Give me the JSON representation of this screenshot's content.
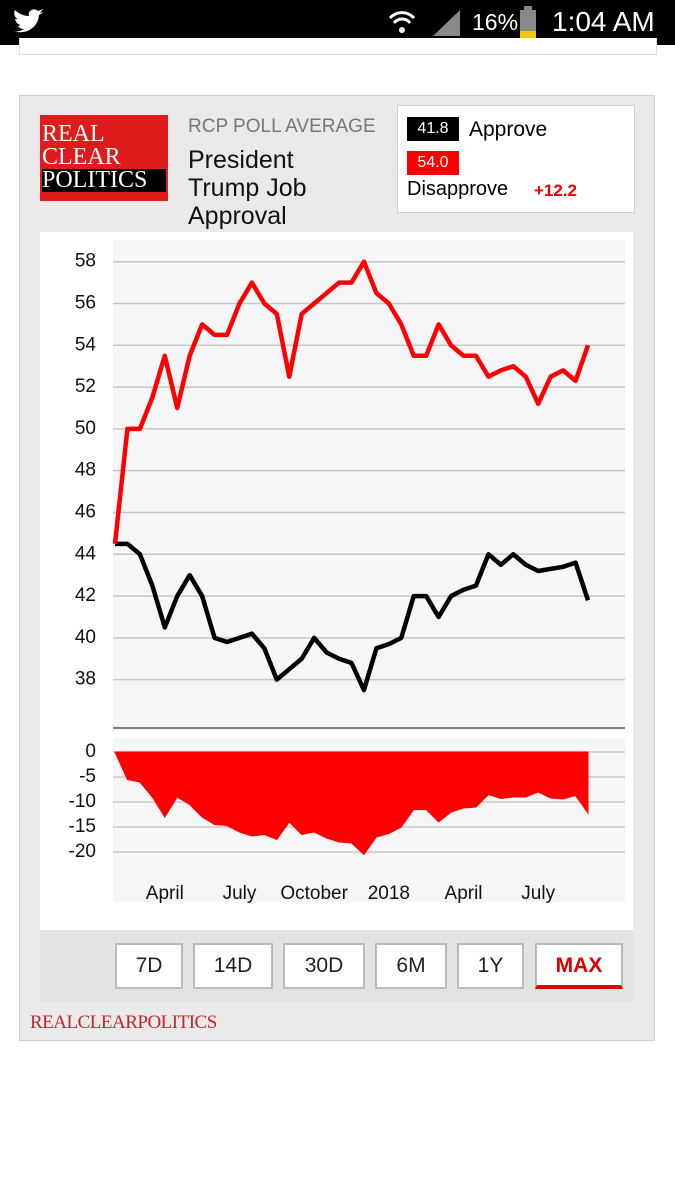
{
  "status_bar": {
    "battery": "16%",
    "time": "1:04 AM"
  },
  "widget": {
    "logo": [
      "REAL",
      "CLEAR",
      "POLITICS"
    ],
    "kicker": "RCP POLL AVERAGE",
    "title": "President Trump Job Approval",
    "summary": {
      "approve": "41.8",
      "disapprove": "54.0",
      "spread": "+12.2"
    },
    "buttons": [
      "7D",
      "14D",
      "30D",
      "6M",
      "1Y",
      "MAX"
    ],
    "selected_button": "MAX",
    "footer": "REALCLEARPOLITICS"
  },
  "chart_data": {
    "type": "line",
    "categories": [
      null,
      null,
      null,
      null,
      "April",
      null,
      null,
      null,
      null,
      null,
      "July",
      null,
      null,
      null,
      null,
      null,
      "October",
      null,
      null,
      null,
      null,
      null,
      "2018",
      null,
      null,
      null,
      null,
      null,
      "April",
      null,
      null,
      null,
      null,
      null,
      "July",
      null,
      null,
      null,
      null
    ],
    "series": [
      {
        "name": "Approve",
        "color": "#000000",
        "values": [
          44.5,
          44.5,
          44.0,
          42.5,
          40.5,
          42.0,
          43.0,
          42.0,
          40.0,
          39.8,
          40.0,
          40.2,
          39.5,
          38.0,
          38.5,
          39.0,
          40.0,
          39.3,
          39.0,
          38.8,
          37.5,
          39.5,
          39.7,
          40.0,
          42.0,
          42.0,
          41.0,
          42.0,
          42.3,
          42.5,
          44.0,
          43.5,
          44.0,
          43.5,
          43.2,
          43.3,
          43.4,
          43.6,
          41.8
        ]
      },
      {
        "name": "Disapprove",
        "color": "#ff0000",
        "values": [
          44.5,
          50.0,
          50.0,
          51.5,
          53.5,
          51.0,
          53.5,
          55.0,
          54.5,
          54.5,
          56.0,
          57.0,
          56.0,
          55.5,
          52.5,
          55.5,
          56.0,
          56.5,
          57.0,
          57.0,
          58.0,
          56.5,
          56.0,
          55.0,
          53.5,
          53.5,
          55.0,
          54.0,
          53.5,
          53.5,
          52.5,
          52.8,
          53.0,
          52.5,
          51.2,
          52.5,
          52.8,
          52.3,
          54.0
        ]
      },
      {
        "type": "area",
        "axis": "y2",
        "color": "#ff0000",
        "values": [
          0,
          -5.5,
          -6.0,
          -9.0,
          -13.0,
          -9.0,
          -10.5,
          -13.0,
          -14.5,
          -14.7,
          -16.0,
          -16.8,
          -16.5,
          -17.5,
          -14.0,
          -16.5,
          -16.0,
          -17.2,
          -18.0,
          -18.2,
          -20.5,
          -17.0,
          -16.3,
          -15.0,
          -11.5,
          -11.5,
          -14.0,
          -12.0,
          -11.2,
          -11.0,
          -8.5,
          -9.3,
          -9.0,
          -9.0,
          -8.0,
          -9.2,
          -9.4,
          -8.7,
          -12.2
        ]
      }
    ],
    "ylim": [
      36.5,
      58.8
    ],
    "yticks": [
      38,
      40,
      42,
      44,
      46,
      48,
      50,
      52,
      54,
      56,
      58
    ],
    "y2lim": [
      -21,
      1
    ],
    "y2ticks": [
      0,
      -5,
      -10,
      -15,
      -20
    ],
    "grid": true
  }
}
